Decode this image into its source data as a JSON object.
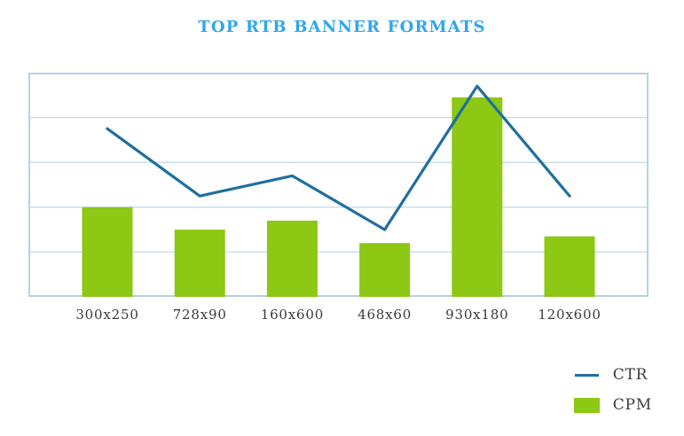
{
  "title": "TOP RTB BANNER FORMATS",
  "chart_data": {
    "type": "bar",
    "subtype": "combo-bar-line",
    "title": "TOP RTB BANNER FORMATS",
    "categories": [
      "300x250",
      "728x90",
      "160x600",
      "468x60",
      "930x180",
      "120x600"
    ],
    "series": [
      {
        "name": "CTR",
        "type": "line",
        "color": "#1F6F9F",
        "values": [
          3.75,
          2.25,
          2.7,
          1.5,
          4.7,
          2.25
        ]
      },
      {
        "name": "CPM",
        "type": "bar",
        "color": "#8CC814",
        "values": [
          2.0,
          1.5,
          1.7,
          1.2,
          4.45,
          1.35
        ]
      }
    ],
    "xlabel": "",
    "ylabel": "",
    "ylim": [
      0,
      5
    ],
    "gridlines": "horizontal at every 1 unit, no y-axis tick labels shown",
    "legend_position": "bottom-right"
  },
  "legend": {
    "items": [
      {
        "label": "CTR",
        "swatch": "line"
      },
      {
        "label": "CPM",
        "swatch": "square"
      }
    ]
  },
  "colors": {
    "title_text": "#2EA7EC",
    "ctr_line": "#1F6F9F",
    "cpm_bar": "#8CC814",
    "gridline": "#C3DBEC",
    "plot_border": "#B5D2E5",
    "axis_label_text": "#3A3A3A",
    "background": "#FFFFFF"
  }
}
